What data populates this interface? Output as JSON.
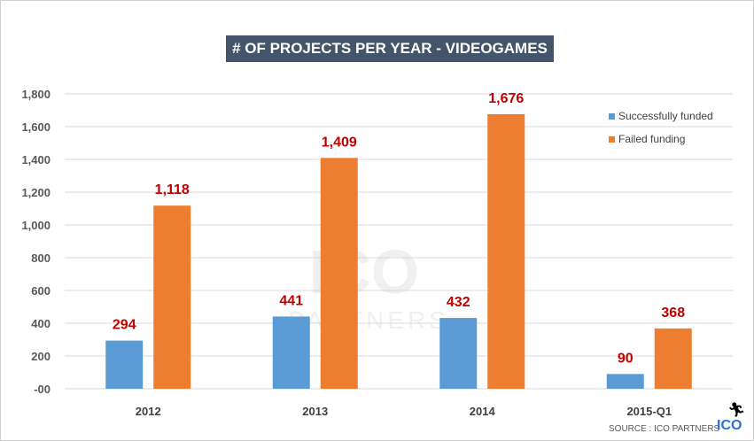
{
  "chart_data": {
    "type": "bar",
    "title": "# OF PROJECTS PER YEAR - VIDEOGAMES",
    "categories": [
      "2012",
      "2013",
      "2014",
      "2015-Q1"
    ],
    "series": [
      {
        "name": "Successfully funded",
        "values": [
          294,
          441,
          432,
          90
        ],
        "color": "#5b9bd5"
      },
      {
        "name": "Failed funding",
        "values": [
          1118,
          1409,
          1676,
          368
        ],
        "color": "#ed7d31"
      }
    ],
    "data_labels": [
      [
        "294",
        "441",
        "432",
        "90"
      ],
      [
        "1,118",
        "1,409",
        "1,676",
        "368"
      ]
    ],
    "data_label_color": "#c00000",
    "ylim": [
      0,
      1800
    ],
    "yticks": [
      0,
      200,
      400,
      600,
      800,
      1000,
      1200,
      1400,
      1600,
      1800
    ],
    "ytick_labels": [
      "-00",
      "200",
      "400",
      "600",
      "800",
      "1,000",
      "1,200",
      "1,400",
      "1,600",
      "1,800"
    ],
    "grid": true,
    "legend": "top-right",
    "xlabel": "",
    "ylabel": ""
  },
  "footer": {
    "source": "SOURCE : ICO PARTNERS",
    "logo": "ICO"
  },
  "watermark": {
    "text": "ICO",
    "subtext": "PARTNERS"
  }
}
